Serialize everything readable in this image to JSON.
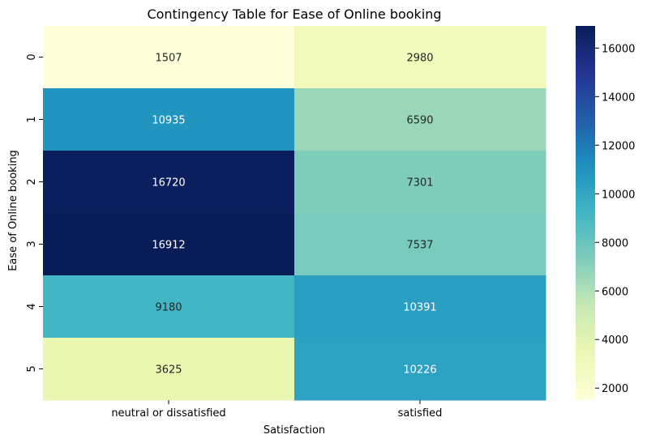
{
  "chart_data": {
    "type": "heatmap",
    "title": "Contingency Table for Ease of Online booking",
    "xlabel": "Satisfaction",
    "ylabel": "Ease of Online booking",
    "x_categories": [
      "neutral or dissatisfied",
      "satisfied"
    ],
    "y_categories": [
      "0",
      "1",
      "2",
      "3",
      "4",
      "5"
    ],
    "values": [
      [
        1507,
        2980
      ],
      [
        10935,
        6590
      ],
      [
        16720,
        7301
      ],
      [
        16912,
        7537
      ],
      [
        9180,
        10391
      ],
      [
        3625,
        10226
      ]
    ],
    "colorscale": "YlGnBu",
    "vmin": 1507,
    "vmax": 16912,
    "colorbar_ticks": [
      2000,
      4000,
      6000,
      8000,
      10000,
      12000,
      14000,
      16000
    ],
    "colorbar_tick_labels": [
      "2000",
      "4000",
      "6000",
      "8000",
      "10000",
      "12000",
      "14000",
      "16000"
    ]
  }
}
